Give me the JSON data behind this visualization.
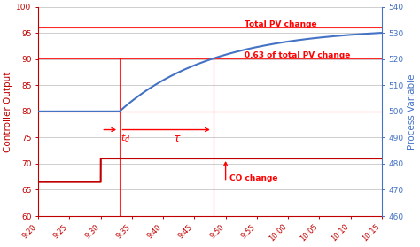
{
  "ylabel_left": "Controller Output",
  "ylabel_right": "Process Variable",
  "ylim_left": [
    60,
    100
  ],
  "ylim_right": [
    460,
    540
  ],
  "yticks_left": [
    60,
    65,
    70,
    75,
    80,
    85,
    90,
    95,
    100
  ],
  "yticks_right": [
    460,
    470,
    480,
    490,
    500,
    510,
    520,
    530,
    540
  ],
  "co_initial": 66.5,
  "co_final": 71.0,
  "co_step_min": 10,
  "pv_initial": 500,
  "pv_final": 532,
  "pv_dead_end_min": 13,
  "pv_tau_min": 28,
  "co_color": "#C00000",
  "pv_color": "#4472C4",
  "red": "#FF0000",
  "bg_color": "#FFFFFF",
  "grid_color": "#BBBBBB",
  "x_start_min": 0,
  "x_end_min": 55,
  "xtick_positions": [
    0,
    5,
    10,
    15,
    20,
    25,
    30,
    35,
    40,
    45,
    50,
    55
  ],
  "xtick_labels": [
    "9:20",
    "9:25",
    "9:30",
    "9:35",
    "9:40",
    "9:45",
    "9:50",
    "9:55",
    "10:00",
    "10:05",
    "10:10",
    "10:15"
  ],
  "tau_shape": 12
}
